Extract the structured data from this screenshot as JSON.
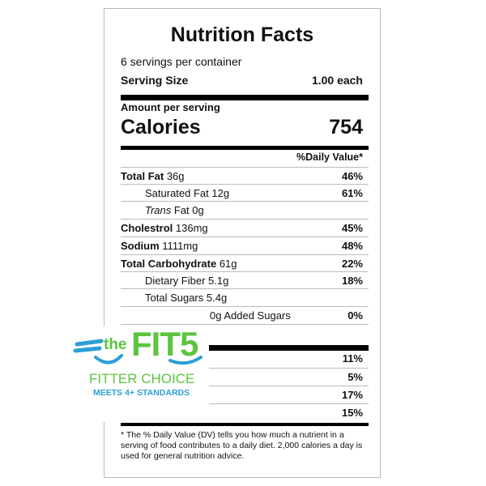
{
  "label": {
    "title": "Nutrition Facts",
    "servings": "6 servings per container",
    "serving_size_label": "Serving Size",
    "serving_size_value": "1.00 each",
    "amount_per_serving": "Amount per serving",
    "calories_label": "Calories",
    "calories_value": "754",
    "dv_header": "%Daily Value*",
    "rows": [
      {
        "name": "Total Fat",
        "amount": " 36g",
        "dv": "46%"
      },
      {
        "name": "Saturated Fat 12g",
        "amount": "",
        "dv": "61%"
      },
      {
        "name": "Trans",
        "amount": " Fat 0g",
        "dv": ""
      },
      {
        "name": "Cholestrol",
        "amount": " 136mg",
        "dv": "45%"
      },
      {
        "name": "Sodium",
        "amount": " 1111mg",
        "dv": "48%"
      },
      {
        "name": "Total Carbohydrate",
        "amount": " 61g",
        "dv": "22%"
      },
      {
        "name": "Dietary Fiber 5.1g",
        "amount": "",
        "dv": "18%"
      },
      {
        "name": "Total Sugars 5.4g",
        "amount": "",
        "dv": ""
      },
      {
        "name": "0g Added Sugars",
        "amount": "",
        "dv": "0%"
      }
    ],
    "lower_rows": [
      {
        "dv": "11%"
      },
      {
        "dv": "5%"
      },
      {
        "dv": "17%"
      },
      {
        "dv": "15%"
      }
    ],
    "footnote": "* The % Daily Value (DV) tells you how much a nutrient in a serving of food contributes to a daily diet. 2,000 calories a day is used for general nutrition advice."
  },
  "logo": {
    "the": "the",
    "fit5": "FIT5",
    "line1": "FITTER CHOICE",
    "line2": "MEETS 4+ STANDARDS",
    "green": "#5cc43f",
    "blue": "#2a9fd6"
  }
}
